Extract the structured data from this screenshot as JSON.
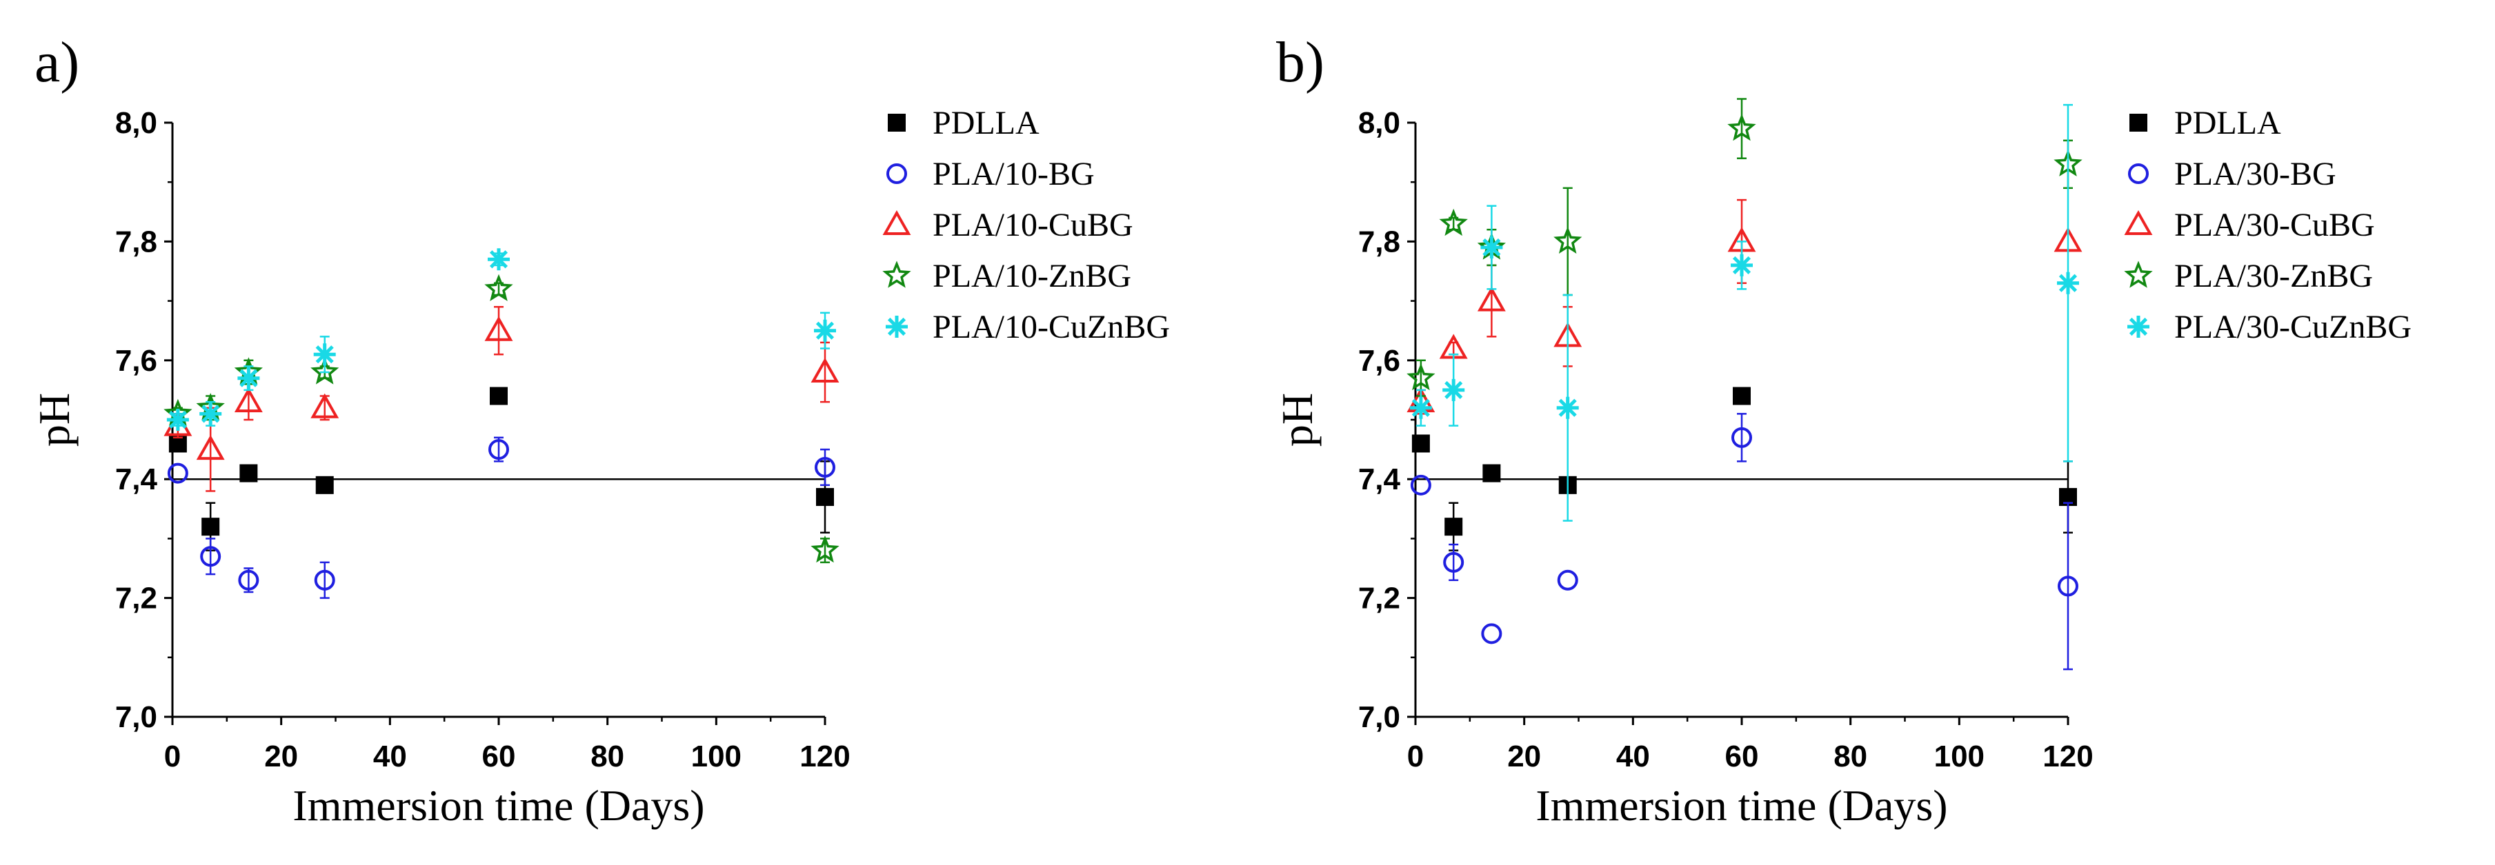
{
  "chart_data": [
    {
      "type": "scatter",
      "panel_label": "a)",
      "xlabel": "Immersion time (Days)",
      "ylabel": "pH",
      "xlim": [
        0,
        120
      ],
      "ylim": [
        7.0,
        8.0
      ],
      "x_ticks": [
        0,
        20,
        40,
        60,
        80,
        100,
        120
      ],
      "y_ticks": [
        7.0,
        7.2,
        7.4,
        7.6,
        7.8,
        8.0
      ],
      "x_tick_labels": [
        "0",
        "20",
        "40",
        "60",
        "80",
        "100",
        "120"
      ],
      "y_tick_labels": [
        "7,0",
        "7,2",
        "7,4",
        "7,6",
        "7,8",
        "8,0"
      ],
      "reference_line_y": 7.4,
      "legend_position": "outside-right",
      "series": [
        {
          "name": "PDLLA",
          "marker": "square",
          "color": "#000000",
          "x": [
            1,
            7,
            14,
            28,
            60,
            120
          ],
          "y": [
            7.46,
            7.32,
            7.41,
            7.39,
            7.54,
            7.37
          ],
          "err": [
            0.0,
            0.04,
            0.0,
            0.0,
            0.0,
            0.06
          ]
        },
        {
          "name": "PLA/10-BG",
          "marker": "circle",
          "color": "#1f1fe0",
          "x": [
            1,
            7,
            14,
            28,
            60,
            120
          ],
          "y": [
            7.41,
            7.27,
            7.23,
            7.23,
            7.45,
            7.42
          ],
          "err": [
            0.0,
            0.03,
            0.02,
            0.03,
            0.02,
            0.03
          ]
        },
        {
          "name": "PLA/10-CuBG",
          "marker": "triangle",
          "color": "#ee2222",
          "x": [
            1,
            7,
            14,
            28,
            60,
            120
          ],
          "y": [
            7.49,
            7.45,
            7.53,
            7.52,
            7.65,
            7.58
          ],
          "err": [
            0.02,
            0.07,
            0.03,
            0.02,
            0.04,
            0.05
          ]
        },
        {
          "name": "PLA/10-ZnBG",
          "marker": "star",
          "color": "#118811",
          "x": [
            1,
            7,
            14,
            28,
            60,
            120
          ],
          "y": [
            7.51,
            7.52,
            7.58,
            7.58,
            7.72,
            7.28
          ],
          "err": [
            0.01,
            0.02,
            0.02,
            0.01,
            0.01,
            0.02
          ]
        },
        {
          "name": "PLA/10-CuZnBG",
          "marker": "asterisk",
          "color": "#19d9e6",
          "x": [
            1,
            7,
            14,
            28,
            60,
            120
          ],
          "y": [
            7.5,
            7.51,
            7.57,
            7.61,
            7.77,
            7.65
          ],
          "err": [
            0.01,
            0.02,
            0.02,
            0.03,
            0.01,
            0.03
          ]
        }
      ]
    },
    {
      "type": "scatter",
      "panel_label": "b)",
      "xlabel": "Immersion time (Days)",
      "ylabel": "pH",
      "xlim": [
        0,
        120
      ],
      "ylim": [
        7.0,
        8.0
      ],
      "x_ticks": [
        0,
        20,
        40,
        60,
        80,
        100,
        120
      ],
      "y_ticks": [
        7.0,
        7.2,
        7.4,
        7.6,
        7.8,
        8.0
      ],
      "x_tick_labels": [
        "0",
        "20",
        "40",
        "60",
        "80",
        "100",
        "120"
      ],
      "y_tick_labels": [
        "7,0",
        "7,2",
        "7,4",
        "7,6",
        "7,8",
        "8,0"
      ],
      "reference_line_y": 7.4,
      "legend_position": "outside-right",
      "series": [
        {
          "name": "PDLLA",
          "marker": "square",
          "color": "#000000",
          "x": [
            1,
            7,
            14,
            28,
            60,
            120
          ],
          "y": [
            7.46,
            7.32,
            7.41,
            7.39,
            7.54,
            7.37
          ],
          "err": [
            0.0,
            0.04,
            0.0,
            0.0,
            0.0,
            0.06
          ]
        },
        {
          "name": "PLA/30-BG",
          "marker": "circle",
          "color": "#1f1fe0",
          "x": [
            1,
            7,
            14,
            28,
            60,
            120
          ],
          "y": [
            7.39,
            7.26,
            7.14,
            7.23,
            7.47,
            7.22
          ],
          "err": [
            0.0,
            0.03,
            0.0,
            0.0,
            0.04,
            0.14
          ]
        },
        {
          "name": "PLA/30-CuBG",
          "marker": "triangle",
          "color": "#ee2222",
          "x": [
            1,
            7,
            14,
            28,
            60,
            120
          ],
          "y": [
            7.53,
            7.62,
            7.7,
            7.64,
            7.8,
            7.8
          ],
          "err": [
            0.02,
            0.01,
            0.06,
            0.05,
            0.07,
            0.0
          ]
        },
        {
          "name": "PLA/30-ZnBG",
          "marker": "star",
          "color": "#118811",
          "x": [
            1,
            7,
            14,
            28,
            60,
            120
          ],
          "y": [
            7.57,
            7.83,
            7.79,
            7.8,
            7.99,
            7.93
          ],
          "err": [
            0.03,
            0.01,
            0.03,
            0.09,
            0.05,
            0.04
          ]
        },
        {
          "name": "PLA/30-CuZnBG",
          "marker": "asterisk",
          "color": "#19d9e6",
          "x": [
            1,
            7,
            14,
            28,
            60,
            120
          ],
          "y": [
            7.52,
            7.55,
            7.79,
            7.52,
            7.76,
            7.73
          ],
          "err": [
            0.03,
            0.06,
            0.07,
            0.19,
            0.04,
            0.3
          ]
        }
      ]
    }
  ]
}
